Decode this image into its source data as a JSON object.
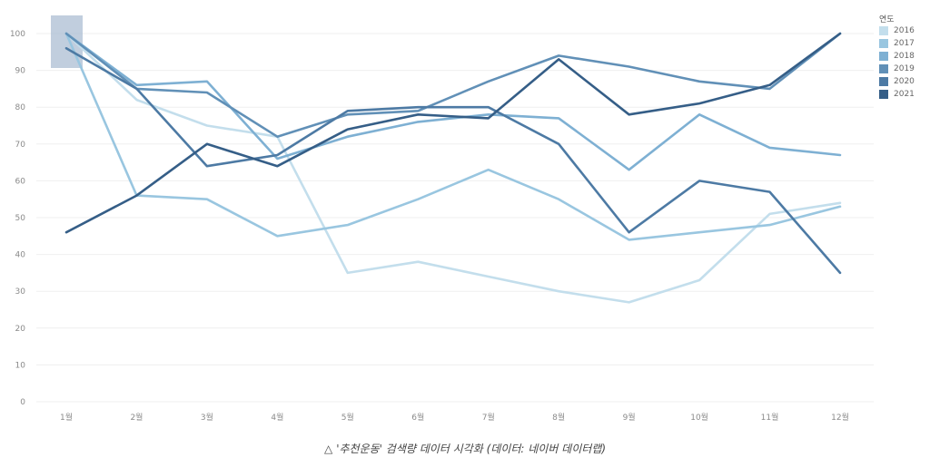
{
  "chart_data": {
    "type": "line",
    "categories": [
      "1월",
      "2월",
      "3월",
      "4월",
      "5월",
      "6월",
      "7월",
      "8월",
      "9월",
      "10월",
      "11월",
      "12월"
    ],
    "y_ticks": [
      0,
      10,
      20,
      30,
      40,
      50,
      60,
      70,
      80,
      90,
      100
    ],
    "ylim": [
      0,
      100
    ],
    "legend_title": "연도",
    "series": [
      {
        "name": "2016",
        "color": "#c3deec",
        "values": [
          100,
          82,
          75,
          72,
          35,
          38,
          34,
          30,
          27,
          33,
          51,
          54
        ]
      },
      {
        "name": "2017",
        "color": "#99c6e0",
        "values": [
          100,
          56,
          55,
          45,
          48,
          55,
          63,
          55,
          44,
          46,
          48,
          53
        ]
      },
      {
        "name": "2018",
        "color": "#7eb0d3",
        "values": [
          100,
          86,
          87,
          66,
          72,
          76,
          78,
          77,
          63,
          78,
          69,
          67
        ]
      },
      {
        "name": "2019",
        "color": "#6190b7",
        "values": [
          100,
          85,
          84,
          72,
          78,
          79,
          87,
          94,
          91,
          87,
          85,
          100
        ]
      },
      {
        "name": "2020",
        "color": "#4d7aa4",
        "values": [
          96,
          85,
          64,
          67,
          79,
          80,
          80,
          70,
          46,
          60,
          57,
          35
        ]
      },
      {
        "name": "2021",
        "color": "#355e87",
        "values": [
          46,
          56,
          70,
          64,
          74,
          78,
          77,
          93,
          78,
          81,
          86,
          100
        ]
      }
    ],
    "highlight_category": "1월"
  },
  "caption": {
    "symbol": "△",
    "text": "'추천운동' 검색량 데이터 시각화 (데이터: 네이버 데이터랩)"
  }
}
